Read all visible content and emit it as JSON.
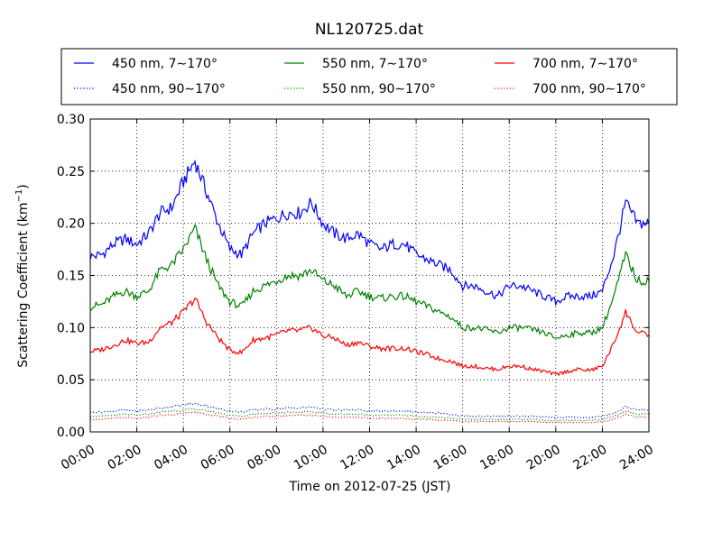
{
  "chart_data": {
    "type": "line",
    "title": "NL120725.dat",
    "xlabel": "Time on 2012-07-25 (JST)",
    "ylabel": "Scattering Coefficient (km",
    "ylabel_sup": "−1",
    "ylabel_end": ")",
    "x_unit": "hours",
    "xlim": [
      0,
      24
    ],
    "ylim": [
      0.0,
      0.3
    ],
    "grid": true,
    "grid_style": "dotted",
    "legend_position": "top, above plot",
    "x_tick_labels": [
      "00:00",
      "02:00",
      "04:00",
      "06:00",
      "08:00",
      "10:00",
      "12:00",
      "14:00",
      "16:00",
      "18:00",
      "20:00",
      "22:00",
      "24:00"
    ],
    "y_tick_labels": [
      "0.00",
      "0.05",
      "0.10",
      "0.15",
      "0.20",
      "0.25",
      "0.30"
    ],
    "x": [
      0,
      0.5,
      1,
      1.5,
      2,
      2.5,
      3,
      3.5,
      4,
      4.5,
      5,
      5.5,
      6,
      6.5,
      7,
      7.5,
      8,
      8.5,
      9,
      9.5,
      10,
      10.5,
      11,
      11.5,
      12,
      12.5,
      13,
      13.5,
      14,
      14.5,
      15,
      15.5,
      16,
      16.5,
      17,
      17.5,
      18,
      18.5,
      19,
      19.5,
      20,
      20.5,
      21,
      21.5,
      22,
      22.5,
      23,
      23.5,
      24
    ],
    "series": [
      {
        "name": "450 nm, 7∼170°",
        "color": "#0000ff",
        "style": "solid",
        "values": [
          0.168,
          0.17,
          0.18,
          0.185,
          0.18,
          0.19,
          0.21,
          0.215,
          0.24,
          0.26,
          0.23,
          0.2,
          0.175,
          0.17,
          0.19,
          0.2,
          0.205,
          0.21,
          0.21,
          0.22,
          0.2,
          0.19,
          0.185,
          0.19,
          0.18,
          0.175,
          0.18,
          0.18,
          0.17,
          0.165,
          0.16,
          0.155,
          0.14,
          0.14,
          0.135,
          0.13,
          0.14,
          0.14,
          0.135,
          0.13,
          0.125,
          0.13,
          0.13,
          0.13,
          0.135,
          0.17,
          0.22,
          0.2,
          0.2
        ]
      },
      {
        "name": "550 nm, 7∼170°",
        "color": "#008000",
        "style": "solid",
        "values": [
          0.12,
          0.122,
          0.13,
          0.135,
          0.13,
          0.135,
          0.155,
          0.16,
          0.175,
          0.195,
          0.165,
          0.14,
          0.125,
          0.12,
          0.135,
          0.14,
          0.145,
          0.15,
          0.15,
          0.155,
          0.145,
          0.14,
          0.13,
          0.135,
          0.13,
          0.128,
          0.13,
          0.13,
          0.125,
          0.12,
          0.115,
          0.11,
          0.1,
          0.1,
          0.098,
          0.095,
          0.1,
          0.1,
          0.098,
          0.095,
          0.09,
          0.093,
          0.095,
          0.095,
          0.1,
          0.13,
          0.17,
          0.145,
          0.145
        ]
      },
      {
        "name": "700 nm, 7∼170°",
        "color": "#ff0000",
        "style": "solid",
        "values": [
          0.077,
          0.079,
          0.083,
          0.088,
          0.085,
          0.086,
          0.1,
          0.105,
          0.115,
          0.128,
          0.105,
          0.09,
          0.078,
          0.076,
          0.088,
          0.09,
          0.093,
          0.097,
          0.097,
          0.1,
          0.092,
          0.09,
          0.083,
          0.086,
          0.082,
          0.08,
          0.08,
          0.08,
          0.077,
          0.074,
          0.07,
          0.068,
          0.063,
          0.063,
          0.061,
          0.06,
          0.063,
          0.063,
          0.06,
          0.058,
          0.055,
          0.058,
          0.06,
          0.059,
          0.063,
          0.085,
          0.115,
          0.095,
          0.093
        ]
      },
      {
        "name": "450 nm, 90∼170°",
        "color": "#0000ff",
        "style": "dotted",
        "values": [
          0.019,
          0.019,
          0.02,
          0.021,
          0.02,
          0.021,
          0.023,
          0.024,
          0.026,
          0.027,
          0.025,
          0.022,
          0.02,
          0.019,
          0.021,
          0.022,
          0.022,
          0.023,
          0.023,
          0.024,
          0.022,
          0.021,
          0.021,
          0.021,
          0.02,
          0.02,
          0.02,
          0.02,
          0.019,
          0.018,
          0.018,
          0.017,
          0.015,
          0.015,
          0.015,
          0.015,
          0.015,
          0.015,
          0.015,
          0.014,
          0.014,
          0.014,
          0.014,
          0.014,
          0.015,
          0.018,
          0.024,
          0.021,
          0.021
        ]
      },
      {
        "name": "550 nm, 90∼170°",
        "color": "#008000",
        "style": "dotted",
        "values": [
          0.015,
          0.015,
          0.016,
          0.017,
          0.016,
          0.017,
          0.019,
          0.02,
          0.021,
          0.022,
          0.02,
          0.018,
          0.016,
          0.015,
          0.017,
          0.018,
          0.018,
          0.019,
          0.019,
          0.019,
          0.018,
          0.017,
          0.017,
          0.017,
          0.016,
          0.016,
          0.016,
          0.016,
          0.015,
          0.014,
          0.014,
          0.013,
          0.012,
          0.012,
          0.012,
          0.012,
          0.012,
          0.012,
          0.012,
          0.011,
          0.011,
          0.011,
          0.011,
          0.011,
          0.012,
          0.015,
          0.02,
          0.017,
          0.017
        ]
      },
      {
        "name": "700 nm, 90∼170°",
        "color": "#ff0000",
        "style": "dotted",
        "values": [
          0.012,
          0.012,
          0.013,
          0.014,
          0.013,
          0.014,
          0.016,
          0.016,
          0.018,
          0.019,
          0.017,
          0.015,
          0.013,
          0.012,
          0.014,
          0.015,
          0.015,
          0.016,
          0.016,
          0.016,
          0.015,
          0.014,
          0.014,
          0.014,
          0.013,
          0.013,
          0.013,
          0.013,
          0.012,
          0.012,
          0.011,
          0.011,
          0.01,
          0.01,
          0.01,
          0.01,
          0.01,
          0.01,
          0.01,
          0.009,
          0.009,
          0.009,
          0.009,
          0.009,
          0.01,
          0.012,
          0.017,
          0.014,
          0.014
        ]
      }
    ]
  }
}
